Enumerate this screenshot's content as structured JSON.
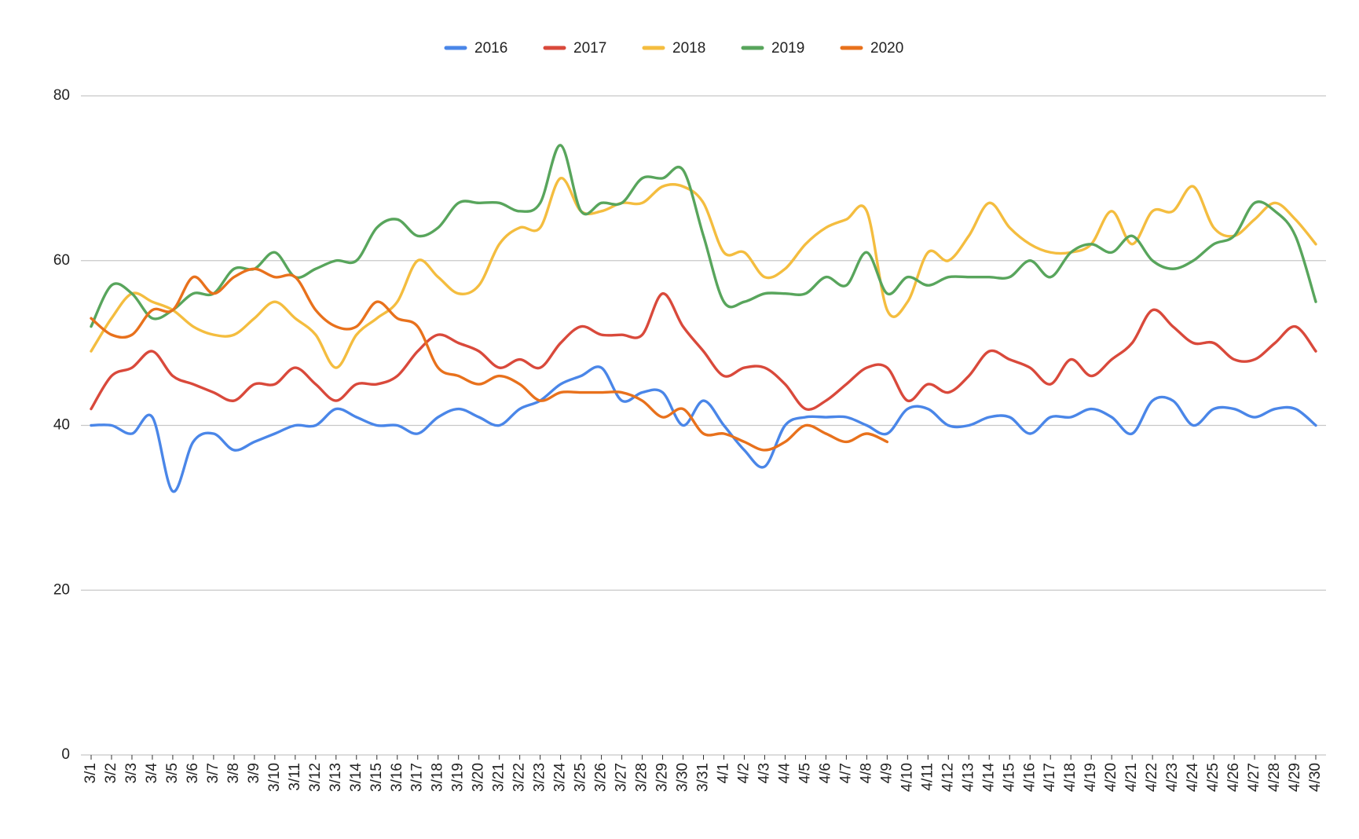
{
  "chart_data": {
    "type": "line",
    "categories": [
      "3/1",
      "3/2",
      "3/3",
      "3/4",
      "3/5",
      "3/6",
      "3/7",
      "3/8",
      "3/9",
      "3/10",
      "3/11",
      "3/12",
      "3/13",
      "3/14",
      "3/15",
      "3/16",
      "3/17",
      "3/18",
      "3/19",
      "3/20",
      "3/21",
      "3/22",
      "3/23",
      "3/24",
      "3/25",
      "3/26",
      "3/27",
      "3/28",
      "3/29",
      "3/30",
      "3/31",
      "4/1",
      "4/2",
      "4/3",
      "4/4",
      "4/5",
      "4/6",
      "4/7",
      "4/8",
      "4/9",
      "4/10",
      "4/11",
      "4/12",
      "4/13",
      "4/14",
      "4/15",
      "4/16",
      "4/17",
      "4/18",
      "4/19",
      "4/20",
      "4/21",
      "4/22",
      "4/23",
      "4/24",
      "4/25",
      "4/26",
      "4/27",
      "4/28",
      "4/29",
      "4/30"
    ],
    "series": [
      {
        "name": "2016",
        "color": "#4a86e8",
        "values": [
          40,
          40,
          39,
          41,
          32,
          38,
          39,
          37,
          38,
          39,
          40,
          40,
          42,
          41,
          40,
          40,
          39,
          41,
          42,
          41,
          40,
          42,
          43,
          45,
          46,
          47,
          43,
          44,
          44,
          40,
          43,
          40,
          37,
          35,
          40,
          41,
          41,
          41,
          40,
          39,
          42,
          42,
          40,
          40,
          41,
          41,
          39,
          41,
          41,
          42,
          41,
          39,
          43,
          43,
          40,
          42,
          42,
          41,
          42,
          42,
          40
        ]
      },
      {
        "name": "2017",
        "color": "#d9493b",
        "values": [
          42,
          46,
          47,
          49,
          46,
          45,
          44,
          43,
          45,
          45,
          47,
          45,
          43,
          45,
          45,
          46,
          49,
          51,
          50,
          49,
          47,
          48,
          47,
          50,
          52,
          51,
          51,
          51,
          56,
          52,
          49,
          46,
          47,
          47,
          45,
          42,
          43,
          45,
          47,
          47,
          43,
          45,
          44,
          46,
          49,
          48,
          47,
          45,
          48,
          46,
          48,
          50,
          54,
          52,
          50,
          50,
          48,
          48,
          50,
          52,
          49
        ]
      },
      {
        "name": "2018",
        "color": "#f4bd3f",
        "values": [
          49,
          53,
          56,
          55,
          54,
          52,
          51,
          51,
          53,
          55,
          53,
          51,
          47,
          51,
          53,
          55,
          60,
          58,
          56,
          57,
          62,
          64,
          64,
          70,
          66,
          66,
          67,
          67,
          69,
          69,
          67,
          61,
          61,
          58,
          59,
          62,
          64,
          65,
          66,
          54,
          55,
          61,
          60,
          63,
          67,
          64,
          62,
          61,
          61,
          62,
          66,
          62,
          66,
          66,
          69,
          64,
          63,
          65,
          67,
          65,
          62
        ]
      },
      {
        "name": "2019",
        "color": "#58a55c",
        "values": [
          52,
          57,
          56,
          53,
          54,
          56,
          56,
          59,
          59,
          61,
          58,
          59,
          60,
          60,
          64,
          65,
          63,
          64,
          67,
          67,
          67,
          66,
          67,
          74,
          66,
          67,
          67,
          70,
          70,
          71,
          63,
          55,
          55,
          56,
          56,
          56,
          58,
          57,
          61,
          56,
          58,
          57,
          58,
          58,
          58,
          58,
          60,
          58,
          61,
          62,
          61,
          63,
          60,
          59,
          60,
          62,
          63,
          67,
          66,
          63,
          55
        ]
      },
      {
        "name": "2020",
        "color": "#e8711c",
        "values": [
          53,
          51,
          51,
          54,
          54,
          58,
          56,
          58,
          59,
          58,
          58,
          54,
          52,
          52,
          55,
          53,
          52,
          47,
          46,
          45,
          46,
          45,
          43,
          44,
          44,
          44,
          44,
          43,
          41,
          42,
          39,
          39,
          38,
          37,
          38,
          40,
          39,
          38,
          39,
          38,
          null,
          null,
          null,
          null,
          null,
          null,
          null,
          null,
          null,
          null,
          null,
          null,
          null,
          null,
          null,
          null,
          null,
          null,
          null,
          null,
          null
        ]
      }
    ],
    "ylim": [
      0,
      80
    ],
    "yticks": [
      0,
      20,
      40,
      60,
      80
    ],
    "grid": true,
    "legend": "top"
  }
}
